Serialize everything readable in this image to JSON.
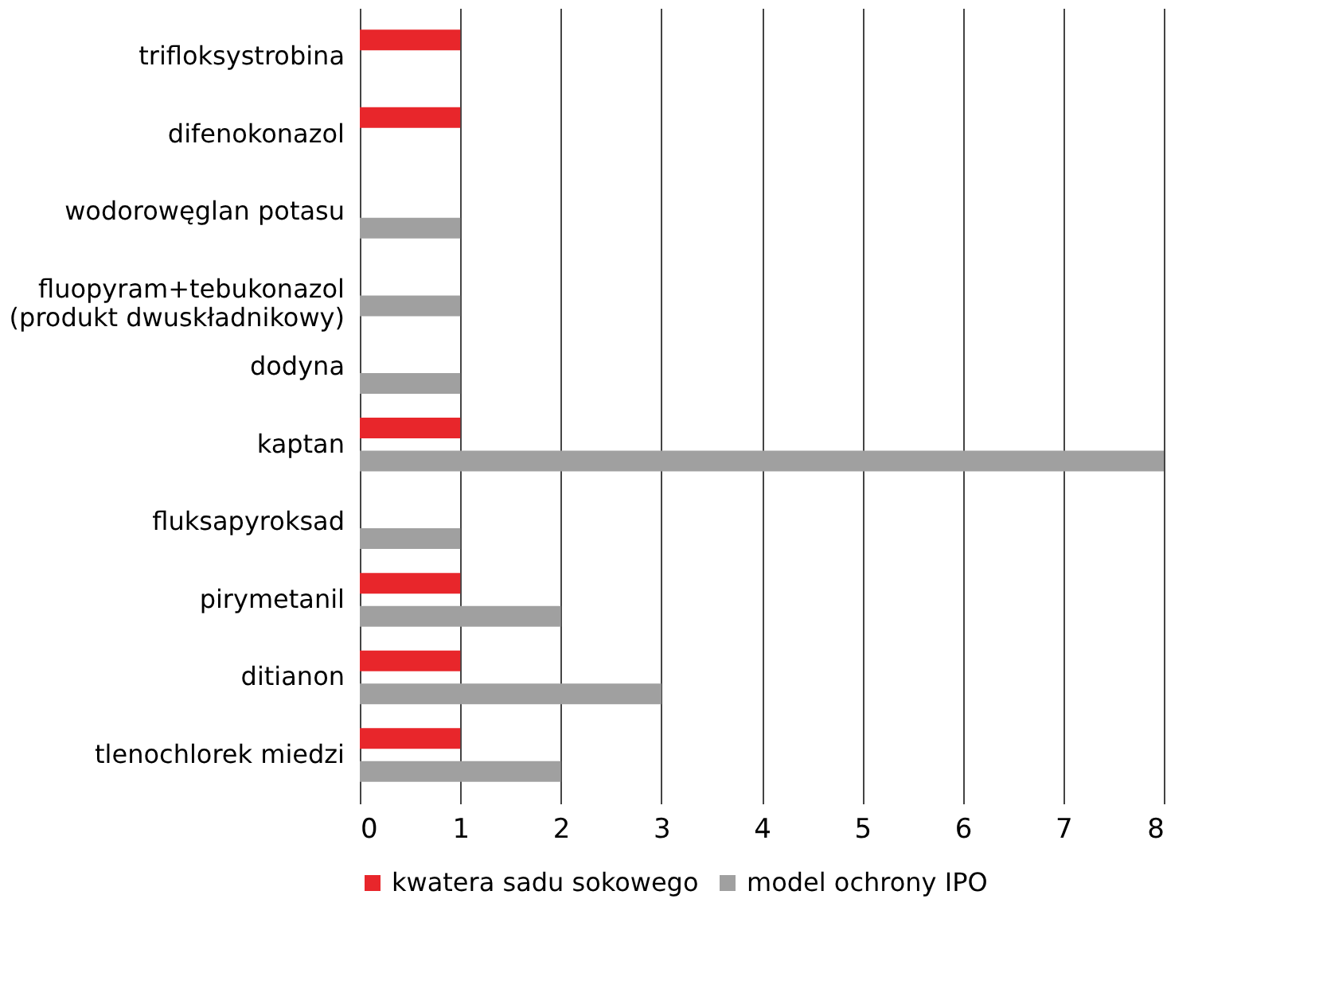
{
  "chart_data": {
    "type": "bar",
    "orientation": "horizontal",
    "categories": [
      "trifloksystrobina",
      "difenokonazol",
      "wodorowęglan potasu",
      "fluopyram+tebukonazol\n(produkt dwuskładnikowy)",
      "dodyna",
      "kaptan",
      "fluksapyroksad",
      "pirymetanil",
      "ditianon",
      "tlenochlorek miedzi"
    ],
    "series": [
      {
        "name": "kwatera sadu sokowego",
        "color": "#e8262b",
        "values": [
          1,
          1,
          null,
          null,
          null,
          1,
          null,
          1,
          1,
          1
        ]
      },
      {
        "name": "model ochrony IPO",
        "color": "#a0a0a0",
        "values": [
          null,
          null,
          1,
          1,
          1,
          8,
          1,
          2,
          3,
          2
        ]
      }
    ],
    "xlim": [
      0,
      8
    ],
    "xticks": [
      0,
      1,
      2,
      3,
      4,
      5,
      6,
      7,
      8
    ],
    "grid": "x",
    "legend": "bottom"
  }
}
